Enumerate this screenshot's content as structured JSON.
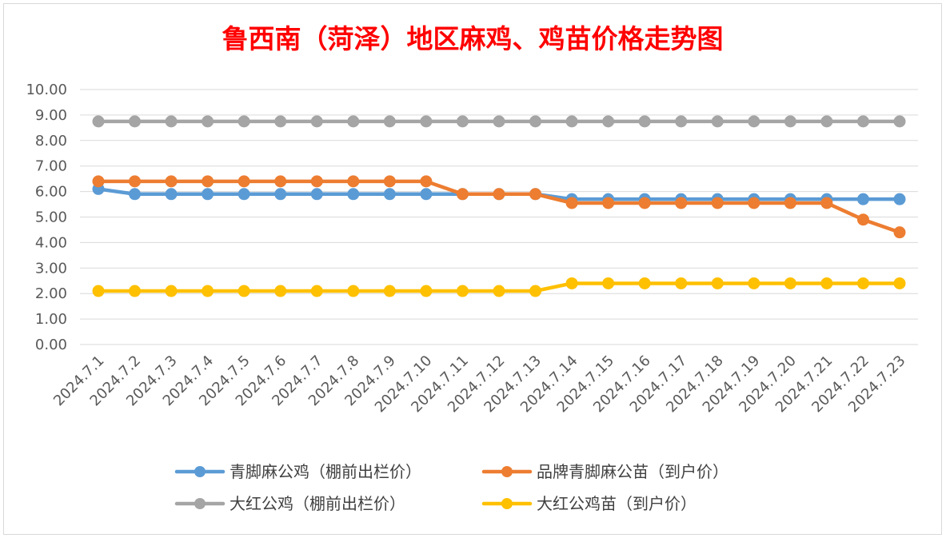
{
  "chart_data": {
    "type": "line",
    "title": "鲁西南（菏泽）地区麻鸡、鸡苗价格走势图",
    "xlabel": "",
    "ylabel": "",
    "ylim": [
      0,
      10
    ],
    "y_ticks": [
      "0.00",
      "1.00",
      "2.00",
      "3.00",
      "4.00",
      "5.00",
      "6.00",
      "7.00",
      "8.00",
      "9.00",
      "10.00"
    ],
    "grid": true,
    "legend_position": "bottom",
    "categories": [
      "2024.7.1",
      "2024.7.2",
      "2024.7.3",
      "2024.7.4",
      "2024.7.5",
      "2024.7.6",
      "2024.7.7",
      "2024.7.8",
      "2024.7.9",
      "2024.7.10",
      "2024.7.11",
      "2024.7.12",
      "2024.7.13",
      "2024.7.14",
      "2024.7.15",
      "2024.7.16",
      "2024.7.17",
      "2024.7.18",
      "2024.7.19",
      "2024.7.20",
      "2024.7.21",
      "2024.7.22",
      "2024.7.23"
    ],
    "series": [
      {
        "name": "青脚麻公鸡（棚前出栏价）",
        "color": "#5b9bd5",
        "values": [
          6.1,
          5.9,
          5.9,
          5.9,
          5.9,
          5.9,
          5.9,
          5.9,
          5.9,
          5.9,
          5.9,
          5.9,
          5.9,
          5.7,
          5.7,
          5.7,
          5.7,
          5.7,
          5.7,
          5.7,
          5.7,
          5.7,
          5.7
        ]
      },
      {
        "name": "品牌青脚麻公苗（到户价）",
        "color": "#ed7d31",
        "values": [
          6.4,
          6.4,
          6.4,
          6.4,
          6.4,
          6.4,
          6.4,
          6.4,
          6.4,
          6.4,
          5.9,
          5.9,
          5.9,
          5.55,
          5.55,
          5.55,
          5.55,
          5.55,
          5.55,
          5.55,
          5.55,
          4.9,
          4.4
        ]
      },
      {
        "name": "大红公鸡（棚前出栏价）",
        "color": "#a5a5a5",
        "values": [
          8.75,
          8.75,
          8.75,
          8.75,
          8.75,
          8.75,
          8.75,
          8.75,
          8.75,
          8.75,
          8.75,
          8.75,
          8.75,
          8.75,
          8.75,
          8.75,
          8.75,
          8.75,
          8.75,
          8.75,
          8.75,
          8.75,
          8.75
        ]
      },
      {
        "name": "大红公鸡苗（到户价）",
        "color": "#ffc000",
        "values": [
          2.1,
          2.1,
          2.1,
          2.1,
          2.1,
          2.1,
          2.1,
          2.1,
          2.1,
          2.1,
          2.1,
          2.1,
          2.1,
          2.4,
          2.4,
          2.4,
          2.4,
          2.4,
          2.4,
          2.4,
          2.4,
          2.4,
          2.4
        ]
      }
    ],
    "legend_order": [
      0,
      1,
      2,
      3
    ]
  }
}
